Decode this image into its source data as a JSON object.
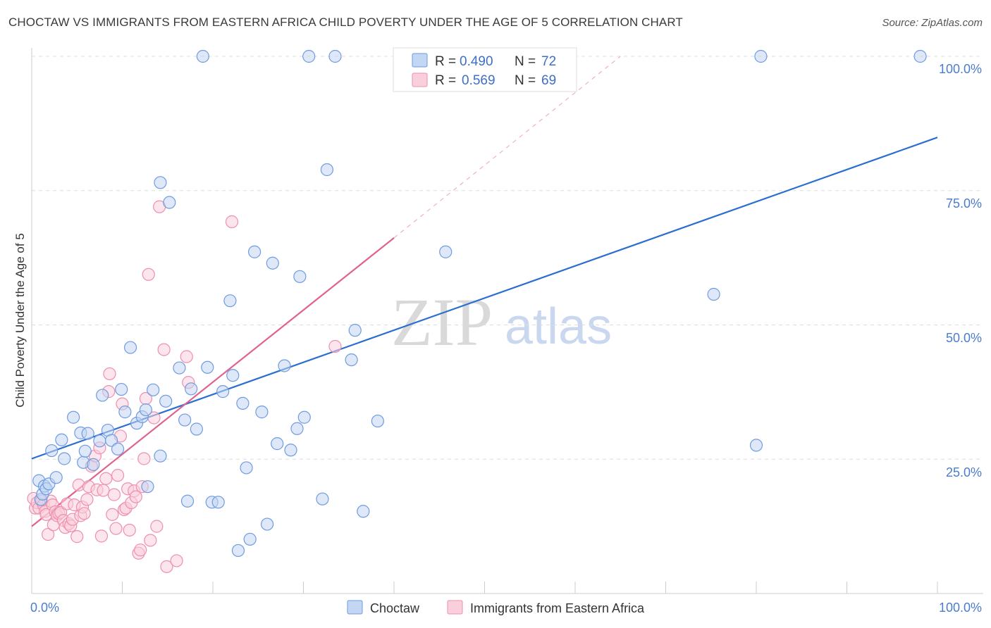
{
  "title": "CHOCTAW VS IMMIGRANTS FROM EASTERN AFRICA CHILD POVERTY UNDER THE AGE OF 5 CORRELATION CHART",
  "source": "Source: ZipAtlas.com",
  "watermark": {
    "zip": "ZIP",
    "atlas": "atlas"
  },
  "colors": {
    "choctaw": "#6f9be0",
    "choctaw_fill": "#c3d6f3",
    "choctaw_line": "#2a6fcf",
    "immigrants": "#ee8fae",
    "immigrants_fill": "#f9cfdc",
    "immigrants_line": "#e0638c",
    "grid": "#dddddd",
    "tick_text": "#4a7ccf"
  },
  "legend_top": {
    "rows": [
      {
        "r_label": "R =",
        "r_value": "0.490",
        "n_label": "N =",
        "n_value": "72"
      },
      {
        "r_label": "R =",
        "r_value": "0.569",
        "n_label": "N =",
        "n_value": "69"
      }
    ]
  },
  "legend_bottom": {
    "items": [
      {
        "label": "Choctaw"
      },
      {
        "label": "Immigrants from Eastern Africa"
      }
    ]
  },
  "chart_data": {
    "type": "scatter",
    "title": "CHOCTAW VS IMMIGRANTS FROM EASTERN AFRICA CHILD POVERTY UNDER THE AGE OF 5 CORRELATION CHART",
    "xlabel": "",
    "ylabel": "Child Poverty Under the Age of 5",
    "xlim": [
      0,
      100
    ],
    "ylim": [
      0,
      100
    ],
    "x_tick_labels": [
      "0.0%",
      "100.0%"
    ],
    "y_ticks": [
      25,
      50,
      75,
      100
    ],
    "y_tick_labels": [
      "25.0%",
      "50.0%",
      "75.0%",
      "100.0%"
    ],
    "grid": true,
    "legend_position": "top-center",
    "series": [
      {
        "name": "Choctaw",
        "R": 0.49,
        "N": 72,
        "trend": {
          "x0": 0,
          "y0": 25.1,
          "x1": 100,
          "y1": 84.9
        },
        "points": [
          [
            0.8,
            21.0
          ],
          [
            1.0,
            17.5
          ],
          [
            1.2,
            18.5
          ],
          [
            1.4,
            20.0
          ],
          [
            1.6,
            19.5
          ],
          [
            1.9,
            20.4
          ],
          [
            2.2,
            26.6
          ],
          [
            2.7,
            21.6
          ],
          [
            3.3,
            28.6
          ],
          [
            3.6,
            25.1
          ],
          [
            4.6,
            32.8
          ],
          [
            5.4,
            29.9
          ],
          [
            5.7,
            24.4
          ],
          [
            5.9,
            26.5
          ],
          [
            6.2,
            29.8
          ],
          [
            6.8,
            24.0
          ],
          [
            7.5,
            28.4
          ],
          [
            7.8,
            36.9
          ],
          [
            8.4,
            30.4
          ],
          [
            8.8,
            28.5
          ],
          [
            9.5,
            26.9
          ],
          [
            9.9,
            38.0
          ],
          [
            10.3,
            33.8
          ],
          [
            10.9,
            45.8
          ],
          [
            11.6,
            31.7
          ],
          [
            12.2,
            32.9
          ],
          [
            12.6,
            34.2
          ],
          [
            12.8,
            19.9
          ],
          [
            13.4,
            37.9
          ],
          [
            14.2,
            25.6
          ],
          [
            14.2,
            76.5
          ],
          [
            14.8,
            35.8
          ],
          [
            15.2,
            72.8
          ],
          [
            16.3,
            42.0
          ],
          [
            16.9,
            32.3
          ],
          [
            17.2,
            17.2
          ],
          [
            17.6,
            38.1
          ],
          [
            18.2,
            30.6
          ],
          [
            18.9,
            100.0
          ],
          [
            19.4,
            42.1
          ],
          [
            19.9,
            17.0
          ],
          [
            20.6,
            17.0
          ],
          [
            21.1,
            37.6
          ],
          [
            21.9,
            54.5
          ],
          [
            22.2,
            40.6
          ],
          [
            22.8,
            8.0
          ],
          [
            23.3,
            35.4
          ],
          [
            23.7,
            23.4
          ],
          [
            24.1,
            10.1
          ],
          [
            24.6,
            63.6
          ],
          [
            25.4,
            33.8
          ],
          [
            26.0,
            12.9
          ],
          [
            26.6,
            61.5
          ],
          [
            27.1,
            27.9
          ],
          [
            27.9,
            42.4
          ],
          [
            28.6,
            26.7
          ],
          [
            29.3,
            30.7
          ],
          [
            29.6,
            59.0
          ],
          [
            30.1,
            32.8
          ],
          [
            30.6,
            100.0
          ],
          [
            32.1,
            17.6
          ],
          [
            32.6,
            78.9
          ],
          [
            33.5,
            100.0
          ],
          [
            35.3,
            43.5
          ],
          [
            35.7,
            49.0
          ],
          [
            36.6,
            15.3
          ],
          [
            38.2,
            32.1
          ],
          [
            45.7,
            63.6
          ],
          [
            75.3,
            55.7
          ],
          [
            80.0,
            27.6
          ],
          [
            80.5,
            100.0
          ],
          [
            98.1,
            100.0
          ]
        ]
      },
      {
        "name": "Immigrants from Eastern Africa",
        "R": 0.569,
        "N": 69,
        "trend": {
          "x0": 0,
          "y0": 12.5,
          "x1": 40,
          "y1": 66.2,
          "dash_x1": 65,
          "dash_y1": 100
        },
        "points": [
          [
            0.2,
            17.7
          ],
          [
            0.4,
            15.9
          ],
          [
            0.6,
            16.9
          ],
          [
            0.8,
            15.9
          ],
          [
            1.1,
            17.2
          ],
          [
            1.3,
            16.5
          ],
          [
            1.5,
            15.3
          ],
          [
            1.6,
            14.7
          ],
          [
            1.8,
            11.0
          ],
          [
            2.1,
            17.2
          ],
          [
            2.3,
            16.5
          ],
          [
            2.4,
            12.8
          ],
          [
            2.6,
            15.2
          ],
          [
            2.8,
            14.5
          ],
          [
            3.0,
            14.9
          ],
          [
            3.2,
            15.1
          ],
          [
            3.5,
            13.6
          ],
          [
            3.7,
            12.3
          ],
          [
            3.9,
            16.7
          ],
          [
            4.1,
            13.0
          ],
          [
            4.3,
            12.6
          ],
          [
            4.5,
            13.8
          ],
          [
            4.7,
            16.5
          ],
          [
            5.0,
            10.6
          ],
          [
            5.2,
            20.2
          ],
          [
            5.4,
            14.5
          ],
          [
            5.6,
            16.1
          ],
          [
            5.8,
            14.9
          ],
          [
            6.1,
            17.5
          ],
          [
            6.3,
            19.9
          ],
          [
            6.6,
            23.7
          ],
          [
            7.0,
            25.6
          ],
          [
            7.2,
            19.3
          ],
          [
            7.5,
            27.1
          ],
          [
            7.7,
            10.7
          ],
          [
            7.9,
            19.2
          ],
          [
            8.2,
            21.4
          ],
          [
            8.5,
            37.6
          ],
          [
            8.6,
            40.9
          ],
          [
            8.9,
            14.7
          ],
          [
            9.1,
            18.4
          ],
          [
            9.3,
            12.1
          ],
          [
            9.5,
            22.0
          ],
          [
            9.8,
            29.3
          ],
          [
            10.0,
            35.3
          ],
          [
            10.2,
            15.6
          ],
          [
            10.4,
            15.9
          ],
          [
            10.6,
            19.5
          ],
          [
            10.8,
            11.8
          ],
          [
            11.0,
            16.9
          ],
          [
            11.3,
            19.1
          ],
          [
            11.5,
            18.0
          ],
          [
            11.8,
            7.5
          ],
          [
            12.0,
            8.1
          ],
          [
            12.2,
            19.9
          ],
          [
            12.4,
            25.1
          ],
          [
            12.6,
            36.3
          ],
          [
            12.9,
            59.4
          ],
          [
            13.1,
            9.9
          ],
          [
            13.5,
            32.7
          ],
          [
            13.8,
            12.5
          ],
          [
            14.1,
            72.0
          ],
          [
            14.6,
            45.4
          ],
          [
            14.9,
            5.0
          ],
          [
            16.0,
            6.1
          ],
          [
            17.1,
            44.1
          ],
          [
            17.3,
            39.3
          ],
          [
            22.1,
            69.2
          ],
          [
            33.5,
            46.0
          ]
        ]
      }
    ]
  }
}
